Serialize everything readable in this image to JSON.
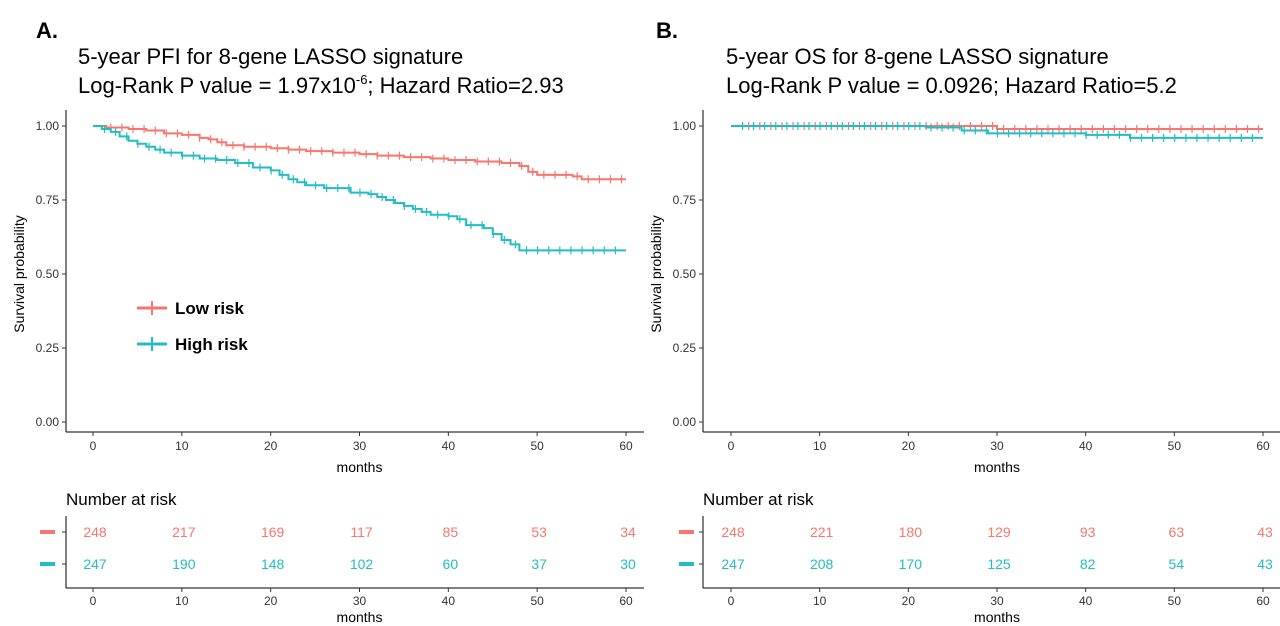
{
  "colors": {
    "low": "#F8766D",
    "high": "#22BDC4",
    "axis": "#000000"
  },
  "chart_data": [
    {
      "panel": "A.",
      "type": "line",
      "title_line1": "5-year PFI for 8-gene LASSO signature",
      "title_line2_prefix": "Log-Rank P value = 1.97x10",
      "title_line2_sup": "-6",
      "title_line2_suffix": "; Hazard Ratio=2.93",
      "xlabel": "months",
      "ylabel": "Survival probability",
      "xlim": [
        0,
        60
      ],
      "ylim": [
        0,
        1
      ],
      "xticks": [
        0,
        10,
        20,
        30,
        40,
        50,
        60
      ],
      "yticks": [
        "0.00",
        "0.25",
        "0.50",
        "0.75",
        "1.00"
      ],
      "legend": {
        "placement": "inside-left",
        "entries": [
          "Low risk",
          "High risk"
        ]
      },
      "series": [
        {
          "name": "Low risk",
          "x": [
            0,
            1.5,
            4,
            6,
            8,
            10,
            12,
            13,
            14,
            15,
            17,
            20,
            22,
            24,
            27,
            30,
            32,
            35,
            38,
            40,
            43,
            46,
            48,
            49,
            50,
            54,
            55,
            60
          ],
          "y": [
            1.0,
            0.995,
            0.99,
            0.985,
            0.975,
            0.97,
            0.96,
            0.955,
            0.945,
            0.935,
            0.93,
            0.925,
            0.92,
            0.915,
            0.91,
            0.905,
            0.9,
            0.895,
            0.89,
            0.885,
            0.88,
            0.875,
            0.865,
            0.845,
            0.835,
            0.83,
            0.82,
            0.82
          ]
        },
        {
          "name": "High risk",
          "x": [
            0,
            1,
            2,
            3,
            4,
            5,
            6,
            7,
            8,
            10,
            12,
            14,
            16,
            18,
            20,
            21,
            22,
            23,
            24,
            26,
            29,
            31,
            32,
            33,
            34,
            35,
            36,
            37,
            38,
            40,
            41,
            42,
            44,
            45,
            46,
            47,
            48,
            60
          ],
          "y": [
            1.0,
            0.99,
            0.98,
            0.965,
            0.95,
            0.94,
            0.93,
            0.92,
            0.91,
            0.9,
            0.89,
            0.885,
            0.875,
            0.86,
            0.85,
            0.835,
            0.82,
            0.81,
            0.8,
            0.79,
            0.775,
            0.77,
            0.76,
            0.75,
            0.74,
            0.73,
            0.72,
            0.71,
            0.7,
            0.695,
            0.685,
            0.665,
            0.655,
            0.635,
            0.615,
            0.6,
            0.58,
            0.58
          ]
        }
      ],
      "risk_table": {
        "title": "Number at risk",
        "xlabel": "months",
        "times": [
          0,
          10,
          20,
          30,
          40,
          50,
          60
        ],
        "rows": [
          {
            "group": "Low risk",
            "values": [
              "248",
              "217",
              "169",
              "117",
              "85",
              "53",
              "34"
            ]
          },
          {
            "group": "High risk",
            "values": [
              "247",
              "190",
              "148",
              "102",
              "60",
              "37",
              "30"
            ]
          }
        ]
      }
    },
    {
      "panel": "B.",
      "type": "line",
      "title_line1": "5-year OS for 8-gene LASSO signature",
      "title_line2_prefix": "Log-Rank P value = 0.0926; Hazard Ratio=5.2",
      "title_line2_sup": "",
      "title_line2_suffix": "",
      "xlabel": "months",
      "ylabel": "Survival probability",
      "xlim": [
        0,
        60
      ],
      "ylim": [
        0,
        1
      ],
      "xticks": [
        0,
        10,
        20,
        30,
        40,
        50,
        60
      ],
      "yticks": [
        "0.00",
        "0.25",
        "0.50",
        "0.75",
        "1.00"
      ],
      "legend": null,
      "series": [
        {
          "name": "Low risk",
          "x": [
            0,
            25,
            30,
            60
          ],
          "y": [
            1.0,
            1.0,
            0.99,
            0.99
          ]
        },
        {
          "name": "High risk",
          "x": [
            0,
            22,
            26,
            29,
            40,
            45,
            60
          ],
          "y": [
            1.0,
            0.995,
            0.985,
            0.975,
            0.97,
            0.96,
            0.96
          ]
        }
      ],
      "risk_table": {
        "title": "Number at risk",
        "xlabel": "months",
        "times": [
          0,
          10,
          20,
          30,
          40,
          50,
          60
        ],
        "rows": [
          {
            "group": "Low risk",
            "values": [
              "248",
              "221",
              "180",
              "129",
              "93",
              "63",
              "43"
            ]
          },
          {
            "group": "High risk",
            "values": [
              "247",
              "208",
              "170",
              "125",
              "82",
              "54",
              "43"
            ]
          }
        ]
      }
    }
  ]
}
